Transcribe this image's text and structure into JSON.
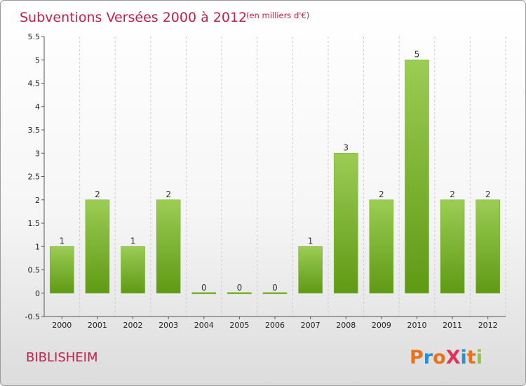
{
  "commune": "BIBLISHEIM",
  "logo": {
    "letters": [
      {
        "char": "P",
        "color": "#e8731c"
      },
      {
        "char": "r",
        "color": "#2b8fd6"
      },
      {
        "char": "o",
        "color": "#e8731c"
      },
      {
        "char": "X",
        "color": "#e0345a"
      },
      {
        "char": "i",
        "color": "#2b8fd6"
      },
      {
        "char": "t",
        "color": "#e8731c"
      },
      {
        "char": "i",
        "color": "#8cc63f"
      }
    ]
  },
  "colors": {
    "title": "#c0234a",
    "bar_top": "#9ccc54",
    "bar_bottom": "#5e9a14",
    "grid": "#cccccc"
  },
  "chart_data": {
    "type": "bar",
    "title": "Subventions Versées 2000 à 2012",
    "subtitle": "(en milliers d'€)",
    "categories": [
      "2000",
      "2001",
      "2002",
      "2003",
      "2004",
      "2005",
      "2006",
      "2007",
      "2008",
      "2009",
      "2010",
      "2011",
      "2012"
    ],
    "values": [
      1,
      2,
      1,
      2,
      0,
      0,
      0,
      1,
      3,
      2,
      5,
      2,
      2
    ],
    "data_labels": [
      "1",
      "2",
      "1",
      "2",
      "0",
      "0",
      "0",
      "1",
      "3",
      "2",
      "5",
      "2",
      "2"
    ],
    "ylim": [
      -0.5,
      5.5
    ],
    "yticks": [
      -0.5,
      0,
      0.5,
      1,
      1.5,
      2,
      2.5,
      3,
      3.5,
      4,
      4.5,
      5,
      5.5
    ],
    "ytick_labels": [
      "-0.5",
      "0",
      "0.5",
      "1",
      "1.5",
      "2",
      "2.5",
      "3",
      "3.5",
      "4",
      "4.5",
      "5",
      "5.5"
    ],
    "xlabel": "",
    "ylabel": "",
    "grid": "vertical dashed"
  }
}
